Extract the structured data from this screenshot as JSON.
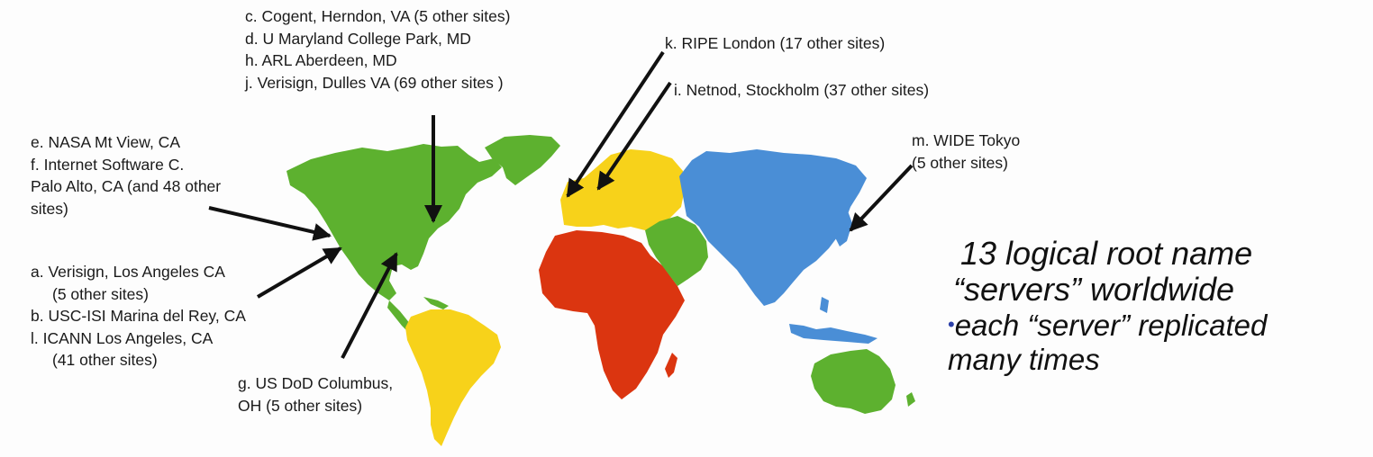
{
  "colors": {
    "north_america": "#5db12f",
    "south_america": "#f7d21a",
    "europe": "#f7d21a",
    "africa": "#db3510",
    "middle_east": "#5db12f",
    "asia": "#4a8ed6",
    "australia": "#5db12f",
    "arrow": "#111111",
    "bullet": "#2b3fa8"
  },
  "labels": {
    "cogent": [
      "c. Cogent, Herndon, VA (5 other sites)",
      "d. U Maryland College Park, MD",
      "h. ARL Aberdeen, MD",
      "j. Verisign, Dulles VA (69 other sites )"
    ],
    "nasa": [
      "e. NASA Mt View, CA",
      "f. Internet Software C.",
      "Palo Alto, CA (and 48 other",
      "sites)"
    ],
    "verisign_la": [
      "a. Verisign, Los Angeles CA",
      "(5 other sites)",
      "b. USC-ISI Marina del Rey, CA",
      "l. ICANN Los Angeles, CA",
      "(41 other sites)"
    ],
    "dod": [
      "g. US DoD Columbus,",
      "OH (5 other sites)"
    ],
    "ripe": "k. RIPE London (17 other sites)",
    "netnod": "i. Netnod, Stockholm (37 other sites)",
    "wide": [
      "m. WIDE Tokyo",
      "(5 other sites)"
    ]
  },
  "headline": {
    "line1": "13 logical root name",
    "line2": "“servers” worldwide",
    "bullet_glyph": "•",
    "line3": "each “server” replicated",
    "line4": "many times"
  }
}
